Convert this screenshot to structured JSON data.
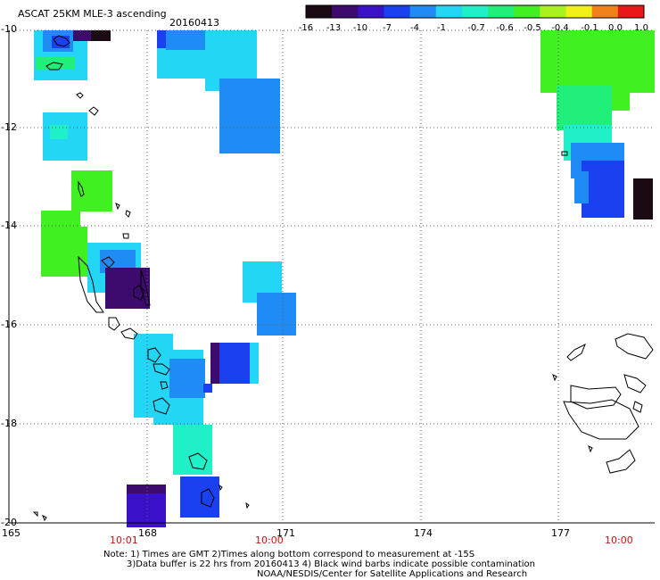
{
  "header": {
    "title": "ASCAT 25KM MLE-3 ascending",
    "date": "20160413"
  },
  "colorbar": {
    "labels": [
      "-16",
      "-13",
      "-10",
      "-7",
      "-4",
      "-1",
      "-0.7",
      "-0.6",
      "-0.5",
      "-0.4",
      "-0.1",
      "0.0",
      "1.0"
    ],
    "colors": [
      "#1a0a14",
      "#3d0a6e",
      "#3a10c8",
      "#1a40f0",
      "#1f8cf5",
      "#23d6f5",
      "#1ff0c8",
      "#20f07a",
      "#40f020",
      "#a8f020",
      "#f0f018",
      "#f08018",
      "#e81818"
    ]
  },
  "axes": {
    "y_ticks": [
      "-10",
      "-12",
      "-14",
      "-16",
      "-18",
      "-20"
    ],
    "x_ticks": [
      "165",
      "168",
      "171",
      "174",
      "177"
    ],
    "time_labels": [
      "10:01",
      "10:00",
      "10:00"
    ]
  },
  "footer": {
    "line1": "Note: 1) Times are GMT 2)Times along bottom correspond to measurement at -15S",
    "line2": "3)Data buffer is 22 hrs from 20160413 4) Black wind barbs indicate possible contamination",
    "line3": "NOAA/NESDIS/Center for Satellite Applications and Research"
  },
  "colors": {
    "time_label": "#d01010",
    "grid": "#606060"
  }
}
